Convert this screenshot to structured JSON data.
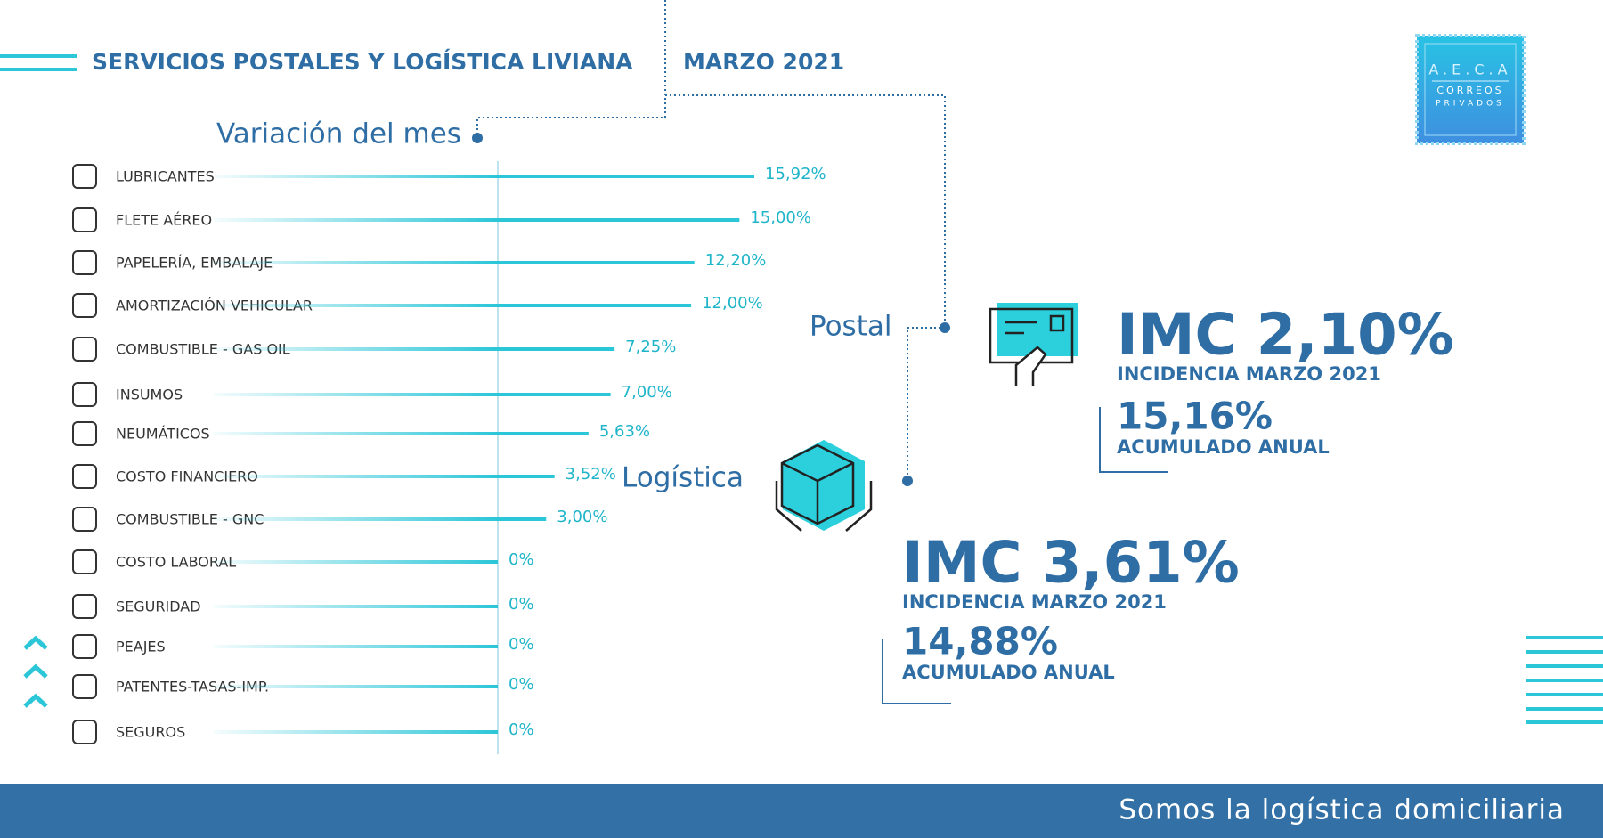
{
  "header": {
    "title": "SERVICIOS POSTALES Y LOGÍSTICA LIVIANA",
    "date": "MARZO 2021"
  },
  "logo": {
    "name": "A.E.C.A",
    "line1": "CORREOS",
    "line2": "PRIVADOS"
  },
  "chart_data": {
    "type": "bar",
    "orientation": "horizontal",
    "title": "Variación del mes",
    "categories": [
      "LUBRICANTES",
      "FLETE AÉREO",
      "PAPELERÍA, EMBALAJE",
      "AMORTIZACIÓN VEHICULAR",
      "COMBUSTIBLE - GAS OIL",
      "INSUMOS",
      "NEUMÁTICOS",
      "COSTO FINANCIERO",
      "COMBUSTIBLE - GNC",
      "COSTO LABORAL",
      "SEGURIDAD",
      "PEAJES",
      "PATENTES-TASAS-IMP.",
      "SEGUROS"
    ],
    "values": [
      15.92,
      15.0,
      12.2,
      12.0,
      7.25,
      7.0,
      5.63,
      3.52,
      3.0,
      0,
      0,
      0,
      0,
      0
    ],
    "value_labels": [
      "15,92%",
      "15,00%",
      "12,20%",
      "12,00%",
      "7,25%",
      "7,00%",
      "5,63%",
      "3,52%",
      "3,00%",
      "0%",
      "0%",
      "0%",
      "0%",
      "0%"
    ],
    "color": "#2bc6d8"
  },
  "panels": [
    {
      "label": "Postal",
      "imc": "IMC 2,10%",
      "imc_caption": "INCIDENCIA MARZO 2021",
      "accumulated": "15,16%",
      "accumulated_caption": "ACUMULADO ANUAL"
    },
    {
      "label": "Logística",
      "imc": "IMC 3,61%",
      "imc_caption": "INCIDENCIA MARZO 2021",
      "accumulated": "14,88%",
      "accumulated_caption": "ACUMULADO ANUAL"
    }
  ],
  "footer": "Somos la logística domiciliaria"
}
